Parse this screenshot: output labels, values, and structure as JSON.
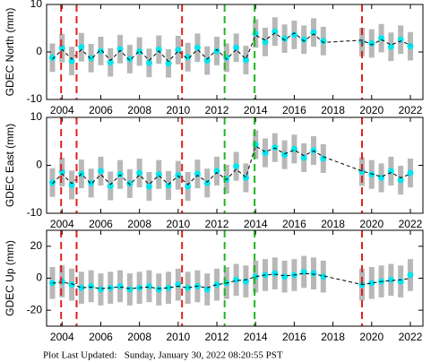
{
  "chart_data": [
    {
      "type": "scatter",
      "ylabel": "GDEC North (mm)",
      "ylim": [
        -10,
        10
      ],
      "yticks": [
        -10,
        0,
        10
      ],
      "xlim": [
        2003.2,
        2022.65
      ],
      "xticks": [
        2004,
        2006,
        2008,
        2010,
        2012,
        2014,
        2016,
        2018,
        2020,
        2022
      ],
      "x": [
        2003.5,
        2004,
        2004.5,
        2005,
        2005.5,
        2006,
        2006.5,
        2007,
        2007.5,
        2008,
        2008.5,
        2009,
        2009.5,
        2010,
        2010.5,
        2011,
        2011.5,
        2012,
        2012.5,
        2013,
        2013.5,
        2014,
        2014.5,
        2015,
        2015.5,
        2016,
        2016.5,
        2017,
        2017.5,
        2019.5,
        2020,
        2020.5,
        2021,
        2021.5,
        2022
      ],
      "error": 3,
      "series": [
        {
          "name": "observations",
          "color": "#00e5ee",
          "values": [
            -1.2,
            0.8,
            -1.9,
            1,
            -1.3,
            0.2,
            -2.2,
            0.6,
            -1.5,
            0.1,
            -2.3,
            0.5,
            -2.4,
            0.4,
            -1.1,
            0.9,
            -1.8,
            0.2,
            -1.2,
            0.9,
            -1.7,
            3.9,
            2.1,
            4.3,
            2.8,
            3.6,
            2.6,
            4.1,
            2.3,
            2.1,
            1.8,
            2.9,
            1.1,
            2.6,
            1.2
          ]
        },
        {
          "name": "model",
          "color": "#000000",
          "values": [
            -1.5,
            0.5,
            -1.5,
            0.5,
            -1.5,
            0.5,
            -1.8,
            0.3,
            -1.8,
            0.3,
            -1.8,
            0.2,
            -2,
            0.2,
            -1.5,
            0.5,
            -1.5,
            0.5,
            -1.5,
            0.5,
            -1.5,
            3.5,
            2.5,
            4,
            2.5,
            4,
            2.3,
            3.8,
            2,
            2.5,
            1.5,
            2.6,
            1.5,
            2.3,
            1.5
          ]
        }
      ],
      "vlines": [
        {
          "x": 2003.95,
          "color": "#e0201b"
        },
        {
          "x": 2004.75,
          "color": "#e0201b"
        },
        {
          "x": 2010.2,
          "color": "#e0201b"
        },
        {
          "x": 2012.4,
          "color": "#1fb51f"
        },
        {
          "x": 2013.95,
          "color": "#1fb51f"
        },
        {
          "x": 2019.5,
          "color": "#e0201b"
        }
      ]
    },
    {
      "type": "scatter",
      "ylabel": "GDEC East (mm)",
      "ylim": [
        -10,
        10
      ],
      "yticks": [
        -10,
        0,
        10
      ],
      "xlim": [
        2003.2,
        2022.65
      ],
      "xticks": [
        2004,
        2006,
        2008,
        2010,
        2012,
        2014,
        2016,
        2018,
        2020,
        2022
      ],
      "x": [
        2003.5,
        2004,
        2004.5,
        2005,
        2005.5,
        2006,
        2006.5,
        2007,
        2007.5,
        2008,
        2008.5,
        2009,
        2009.5,
        2010,
        2010.5,
        2011,
        2011.5,
        2012,
        2012.5,
        2013,
        2013.5,
        2014,
        2014.5,
        2015,
        2015.5,
        2016,
        2016.5,
        2017,
        2017.5,
        2019.5,
        2020,
        2020.5,
        2021,
        2021.5,
        2022
      ],
      "error": 3,
      "series": [
        {
          "name": "observations",
          "color": "#00e5ee",
          "values": [
            -3.6,
            -1.4,
            -4.1,
            -1.8,
            -3.7,
            -1.2,
            -4.3,
            -1.9,
            -3.8,
            -1.6,
            -4.4,
            -1.9,
            -4.2,
            -2.1,
            -4.4,
            -1.8,
            -3.7,
            -1.2,
            -2.9,
            -0.2,
            -2.6,
            4.3,
            2.6,
            3.7,
            2.2,
            3.4,
            1.6,
            3.1,
            1.4,
            -1.3,
            -1.9,
            -2.6,
            -1.2,
            -3.1,
            -1.6
          ]
        },
        {
          "name": "model",
          "color": "#000000",
          "values": [
            -3.8,
            -1.8,
            -3.8,
            -1.8,
            -3.9,
            -1.9,
            -4,
            -2,
            -4,
            -2,
            -4,
            -2.1,
            -4,
            -2.2,
            -4,
            -2.1,
            -3.5,
            -1.5,
            -3,
            -0.8,
            -2.5,
            4,
            2.8,
            3.6,
            2.4,
            3.2,
            2,
            3,
            1.8,
            -1.2,
            -1.8,
            -2.4,
            -1.5,
            -2.6,
            -1.8
          ]
        }
      ],
      "vlines": [
        {
          "x": 2003.95,
          "color": "#e0201b"
        },
        {
          "x": 2004.75,
          "color": "#e0201b"
        },
        {
          "x": 2010.2,
          "color": "#e0201b"
        },
        {
          "x": 2012.4,
          "color": "#1fb51f"
        },
        {
          "x": 2013.95,
          "color": "#1fb51f"
        },
        {
          "x": 2019.5,
          "color": "#e0201b"
        }
      ]
    },
    {
      "type": "scatter",
      "ylabel": "GDEC Up (mm)",
      "ylim": [
        -30,
        30
      ],
      "yticks": [
        -20,
        0,
        20
      ],
      "xlim": [
        2003.2,
        2022.65
      ],
      "xticks": [
        2004,
        2006,
        2008,
        2010,
        2012,
        2014,
        2016,
        2018,
        2020,
        2022
      ],
      "x": [
        2003.5,
        2004,
        2004.5,
        2005,
        2005.5,
        2006,
        2006.5,
        2007,
        2007.5,
        2008,
        2008.5,
        2009,
        2009.5,
        2010,
        2010.5,
        2011,
        2011.5,
        2012,
        2012.5,
        2013,
        2013.5,
        2014,
        2014.5,
        2015,
        2015.5,
        2016,
        2016.5,
        2017,
        2017.5,
        2019.5,
        2020,
        2020.5,
        2021,
        2021.5,
        2022
      ],
      "error": 10,
      "series": [
        {
          "name": "observations",
          "color": "#00e5ee",
          "values": [
            -3,
            -2,
            -4,
            -6,
            -5,
            -7,
            -6,
            -5,
            -7,
            -6,
            -5,
            -7,
            -6,
            -4,
            -6,
            -5,
            -7,
            -4,
            -3,
            -1,
            -2,
            1,
            2,
            3,
            1,
            2,
            4,
            3,
            1,
            -4,
            -3,
            -2,
            -1,
            -2,
            2
          ]
        },
        {
          "name": "model",
          "color": "#000000",
          "values": [
            -3,
            -2.5,
            -3.5,
            -6,
            -5.5,
            -6.5,
            -6,
            -5.5,
            -6.5,
            -6,
            -5.5,
            -6.5,
            -6,
            -5,
            -6,
            -5,
            -6,
            -4,
            -3,
            -1.5,
            -1,
            1,
            2,
            2.5,
            1.5,
            2,
            3,
            2.5,
            1.5,
            -4,
            -3,
            -2,
            -1.5,
            -1,
            0
          ]
        }
      ],
      "vlines": [
        {
          "x": 2003.95,
          "color": "#e0201b"
        },
        {
          "x": 2004.75,
          "color": "#e0201b"
        },
        {
          "x": 2010.2,
          "color": "#e0201b"
        },
        {
          "x": 2012.4,
          "color": "#1fb51f"
        },
        {
          "x": 2013.95,
          "color": "#1fb51f"
        },
        {
          "x": 2019.5,
          "color": "#e0201b"
        }
      ]
    }
  ],
  "footer": "Plot Last Updated:   Sunday, January 30, 2022 08:20:55 PST"
}
